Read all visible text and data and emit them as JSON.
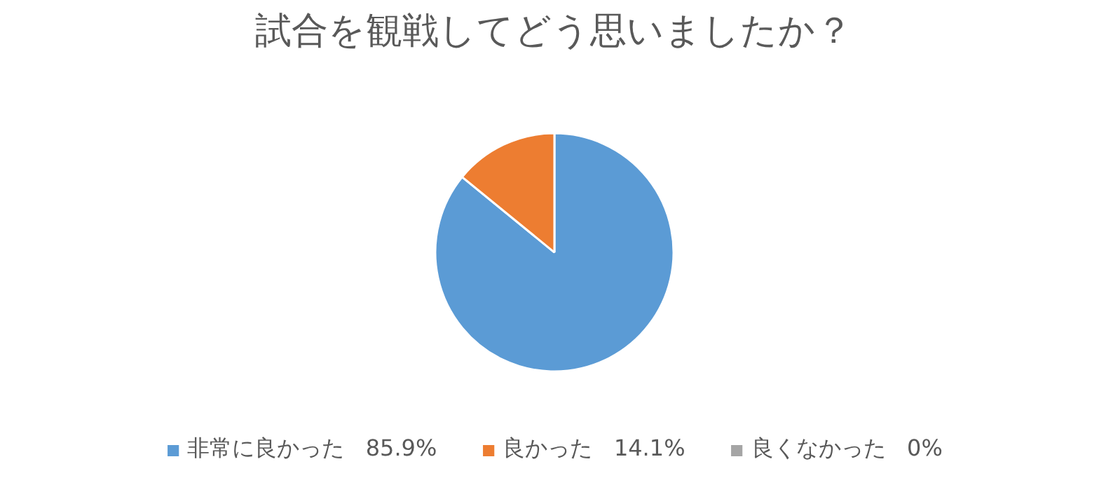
{
  "chart_data": {
    "type": "pie",
    "title": "試合を観戦してどう思いましたか？",
    "categories": [
      "非常に良かった",
      "良かった",
      "良くなかった"
    ],
    "values": [
      85.9,
      14.1,
      0
    ],
    "value_labels": [
      "85.9%",
      "14.1%",
      "0%"
    ],
    "colors": [
      "#5b9bd5",
      "#ed7d31",
      "#a5a5a5"
    ],
    "legend": "bottom"
  }
}
